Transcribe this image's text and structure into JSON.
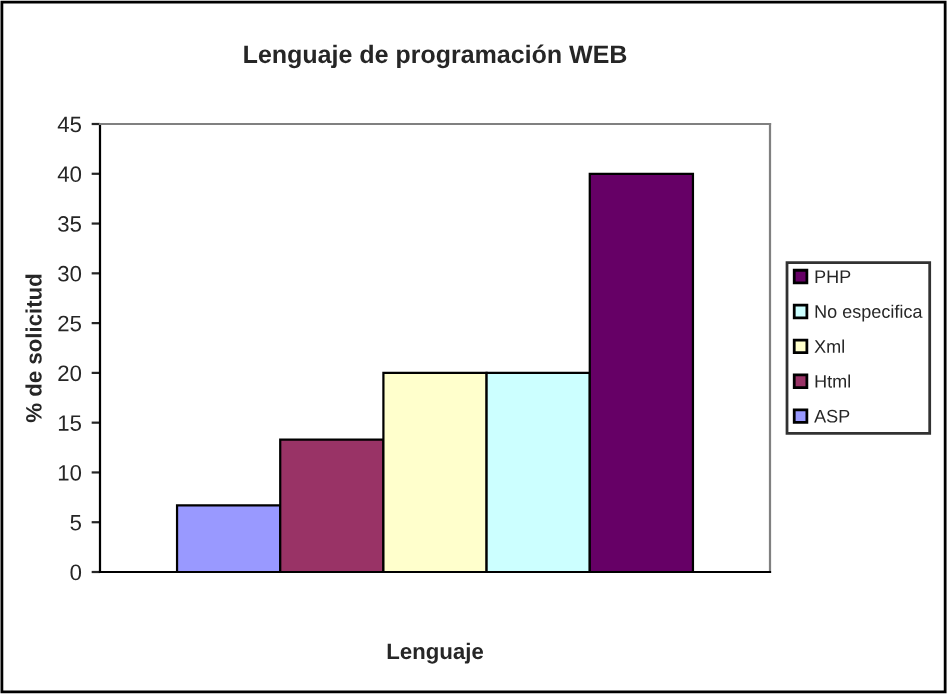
{
  "chart_data": {
    "type": "bar",
    "title": "Lenguaje de programación WEB",
    "xlabel": "Lenguaje",
    "ylabel": "% de solicitud",
    "categories": [
      null
    ],
    "series": [
      {
        "name": "ASP",
        "color": "#9999ff",
        "values": [
          6.7
        ]
      },
      {
        "name": "Html",
        "color": "#993366",
        "values": [
          13.3
        ]
      },
      {
        "name": "Xml",
        "color": "#ffffcc",
        "values": [
          20
        ]
      },
      {
        "name": "No especifica",
        "color": "#ccffff",
        "values": [
          20
        ]
      },
      {
        "name": "PHP",
        "color": "#660066",
        "values": [
          40
        ]
      }
    ],
    "ylim": [
      0,
      45
    ],
    "yticks": [
      0,
      5,
      10,
      15,
      20,
      25,
      30,
      35,
      40,
      45
    ],
    "grid": false,
    "legend": "right"
  }
}
